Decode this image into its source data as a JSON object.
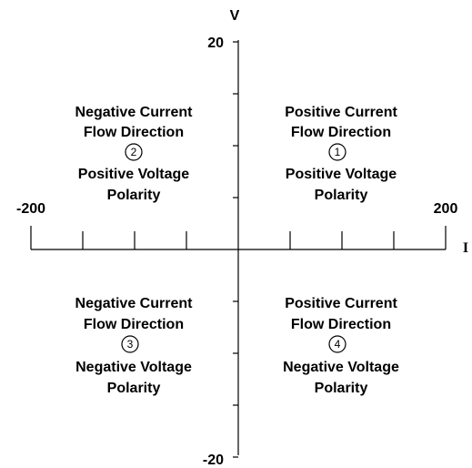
{
  "axes": {
    "vertical_name": "V",
    "horizontal_name": "I",
    "v_max_label": "20",
    "v_min_label": "-20",
    "i_min_label": "-200",
    "i_max_label": "200",
    "v_range": [
      -20,
      20
    ],
    "i_range": [
      -200,
      200
    ],
    "v_tick_count": 8,
    "i_tick_count": 8
  },
  "quadrants": [
    {
      "number": "1",
      "current": "Positive Current",
      "flow": "Flow Direction",
      "voltage": "Positive Voltage",
      "polarity": "Polarity"
    },
    {
      "number": "2",
      "current": "Negative Current",
      "flow": "Flow Direction",
      "voltage": "Positive Voltage",
      "polarity": "Polarity"
    },
    {
      "number": "3",
      "current": "Negative Current",
      "flow": "Flow Direction",
      "voltage": "Negative Voltage",
      "polarity": "Polarity"
    },
    {
      "number": "4",
      "current": "Positive Current",
      "flow": "Flow Direction",
      "voltage": "Negative Voltage",
      "polarity": "Polarity"
    }
  ]
}
